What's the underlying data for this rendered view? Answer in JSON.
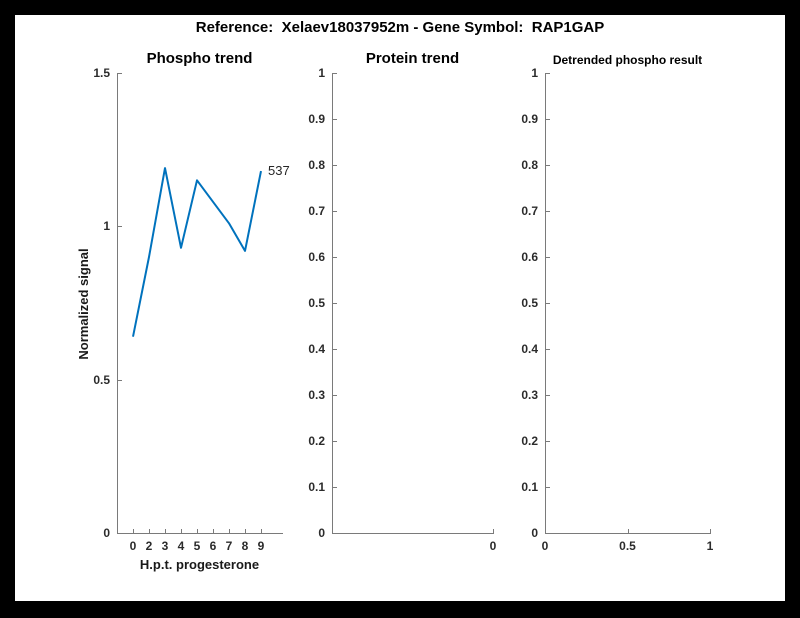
{
  "header": {
    "title": "Reference:  Xelaev18037952m - Gene Symbol:  RAP1GAP",
    "reference": "Xelaev18037952m",
    "gene_symbol": "RAP1GAP"
  },
  "colors": {
    "line": "#0072BD",
    "axis": "#7a7a7a",
    "text": "#262626",
    "frame": "#000000",
    "paper": "#ffffff"
  },
  "chart_data": [
    {
      "type": "line",
      "title": "Phospho trend",
      "xlabel": "H.p.t. progesterone",
      "ylabel": "Normalized signal",
      "x_values": [
        0,
        2,
        3,
        4,
        5,
        6,
        7,
        8,
        9
      ],
      "x_tick_labels": [
        "0",
        "2",
        "3",
        "4",
        "5",
        "6",
        "7",
        "8",
        "9"
      ],
      "values": [
        0.64,
        0.9,
        1.19,
        0.93,
        1.15,
        1.08,
        1.01,
        0.92,
        1.18
      ],
      "ylim": [
        0,
        1.5
      ],
      "y_ticks": [
        0,
        0.5,
        1,
        1.5
      ],
      "y_tick_labels": [
        "0",
        "0.5",
        "1",
        "1.5"
      ],
      "grid": false,
      "legend": "none",
      "line_color": "#0072BD",
      "end_annotation": "537"
    },
    {
      "type": "line",
      "title": "Protein trend",
      "xlabel": "",
      "ylabel": "",
      "x_tick_labels": [
        "0"
      ],
      "values": [],
      "ylim": [
        0,
        1
      ],
      "y_ticks": [
        0,
        0.1,
        0.2,
        0.3,
        0.4,
        0.5,
        0.6,
        0.7,
        0.8,
        0.9,
        1
      ],
      "y_tick_labels": [
        "0",
        "0.1",
        "0.2",
        "0.3",
        "0.4",
        "0.5",
        "0.6",
        "0.7",
        "0.8",
        "0.9",
        "1"
      ],
      "grid": false,
      "legend": "none"
    },
    {
      "type": "line",
      "title": "Detrended phospho result",
      "xlabel": "",
      "ylabel": "",
      "x_tick_labels": [
        "0",
        "0.5",
        "1"
      ],
      "values": [],
      "ylim": [
        0,
        1
      ],
      "y_ticks": [
        0,
        0.1,
        0.2,
        0.3,
        0.4,
        0.5,
        0.6,
        0.7,
        0.8,
        0.9,
        1
      ],
      "y_tick_labels": [
        "0",
        "0.1",
        "0.2",
        "0.3",
        "0.4",
        "0.5",
        "0.6",
        "0.7",
        "0.8",
        "0.9",
        "1"
      ],
      "grid": false,
      "legend": "none"
    }
  ]
}
